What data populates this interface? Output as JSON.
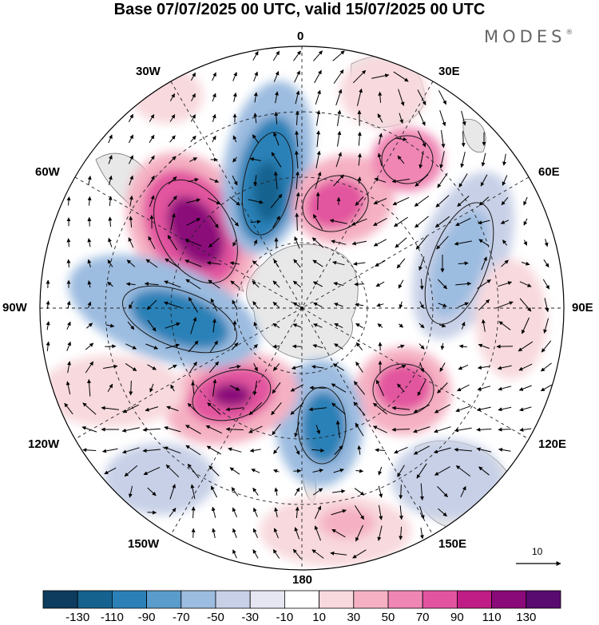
{
  "title": "Base 07/07/2025 00 UTC, valid 15/07/2025 00 UTC",
  "brand": "MODES",
  "brand_mark": "®",
  "longitude_labels": {
    "lon_0": "0",
    "lon_30e": "30E",
    "lon_60e": "60E",
    "lon_90e": "90E",
    "lon_120e": "120E",
    "lon_150e": "150E",
    "lon_180": "180",
    "lon_150w": "150W",
    "lon_120w": "120W",
    "lon_90w": "90W",
    "lon_60w": "60W",
    "lon_30w": "30W"
  },
  "reference_vector": {
    "label": "10"
  },
  "colorbar": {
    "labels": [
      "-130",
      "-110",
      "-90",
      "-70",
      "-50",
      "-30",
      "-10",
      "10",
      "30",
      "50",
      "70",
      "90",
      "110",
      "130"
    ],
    "colors": [
      "#0d3c5e",
      "#15628f",
      "#2b81b7",
      "#5a9ccb",
      "#9cbce0",
      "#c7d0e7",
      "#e6e6f2",
      "#ffffff",
      "#f8d9dd",
      "#f5b1c3",
      "#ef86b3",
      "#e2549f",
      "#c01d86",
      "#8b0a7a",
      "#5a0b70"
    ]
  },
  "map_colors": {
    "land": "#e8e8e8",
    "background": "#ffffff"
  },
  "anomaly_centers": [
    {
      "name": "positive-center-60w",
      "sign": "+",
      "level": 130
    },
    {
      "name": "negative-center-10w",
      "sign": "-",
      "level": 130
    },
    {
      "name": "positive-center-25e",
      "sign": "+",
      "level": 90
    },
    {
      "name": "positive-center-45e",
      "sign": "+",
      "level": 70
    },
    {
      "name": "negative-center-80e",
      "sign": "-",
      "level": 50
    },
    {
      "name": "positive-center-120e",
      "sign": "+",
      "level": 90
    },
    {
      "name": "negative-center-160e",
      "sign": "-",
      "level": 90
    },
    {
      "name": "positive-center-150w",
      "sign": "+",
      "level": 130
    },
    {
      "name": "negative-center-105w",
      "sign": "-",
      "level": 110
    },
    {
      "name": "positive-center-165e-outer",
      "sign": "+",
      "level": 50
    },
    {
      "name": "negative-center-135e-outer",
      "sign": "-",
      "level": 50
    },
    {
      "name": "positive-center-90e-outer",
      "sign": "+",
      "level": 50
    }
  ]
}
